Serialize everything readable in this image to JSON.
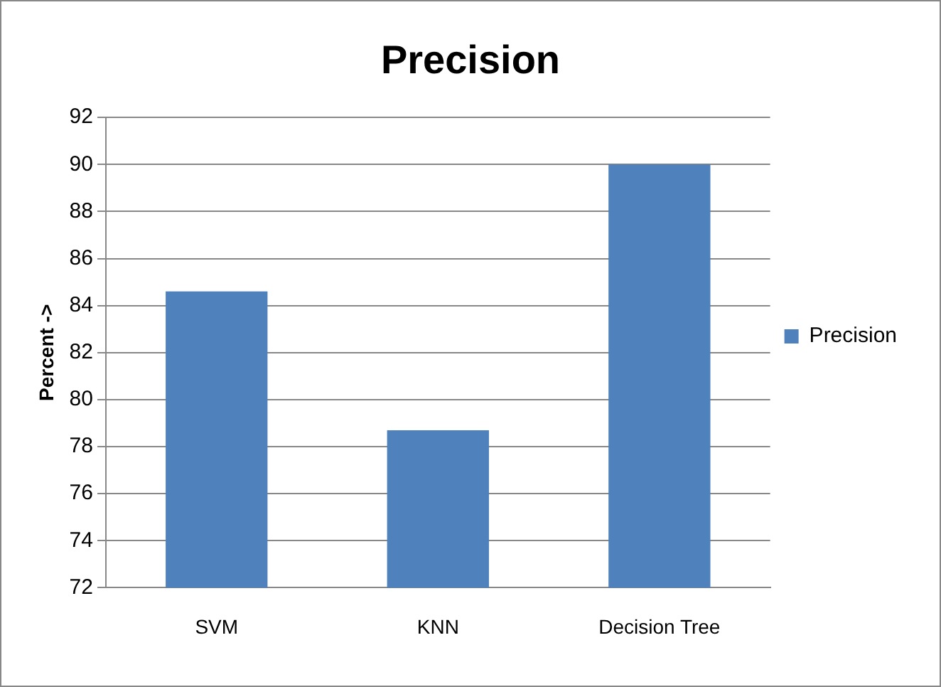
{
  "chart_data": {
    "type": "bar",
    "title": "Precision",
    "ylabel": "Percent ->",
    "categories": [
      "SVM",
      "KNN",
      "Decision Tree"
    ],
    "series": [
      {
        "name": "Precision",
        "color": "#4f81bd",
        "values": [
          84.6,
          78.7,
          90
        ]
      }
    ],
    "ylim": [
      72,
      92
    ],
    "yticks": [
      72,
      74,
      76,
      78,
      80,
      82,
      84,
      86,
      88,
      90,
      92
    ],
    "grid": "y",
    "legend": "right"
  }
}
